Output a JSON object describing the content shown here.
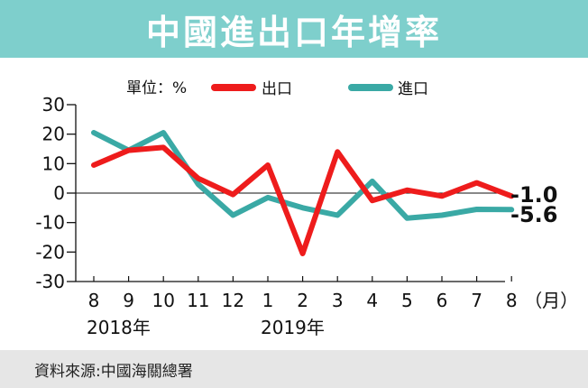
{
  "title": "中國進出口年增率",
  "source": "資料來源:中國海關總署",
  "chart_data": {
    "type": "line",
    "unit_label": "單位：%",
    "x": [
      "8",
      "9",
      "10",
      "11",
      "12",
      "1",
      "2",
      "3",
      "4",
      "5",
      "6",
      "7",
      "8"
    ],
    "x_suffix": "（月）",
    "year_labels": [
      {
        "text": "2018年",
        "index": 0
      },
      {
        "text": "2019年",
        "index": 5
      }
    ],
    "ylim": [
      -30,
      30
    ],
    "yticks": [
      30,
      20,
      10,
      0,
      -10,
      -20,
      -30
    ],
    "zero_line": true,
    "legend_position": "top",
    "series": [
      {
        "name": "出口",
        "color": "#ee1c1c",
        "values": [
          9.5,
          14.5,
          15.5,
          5.0,
          -0.5,
          9.5,
          -20.5,
          14.0,
          -2.5,
          1.0,
          -1.0,
          3.5,
          -1.0
        ],
        "end_label": "-1.0"
      },
      {
        "name": "進口",
        "color": "#3aa9a5",
        "values": [
          20.5,
          14.5,
          20.5,
          3.0,
          -7.5,
          -1.5,
          -5.0,
          -7.5,
          4.0,
          -8.5,
          -7.5,
          -5.5,
          -5.6
        ],
        "end_label": "-5.6"
      }
    ]
  }
}
